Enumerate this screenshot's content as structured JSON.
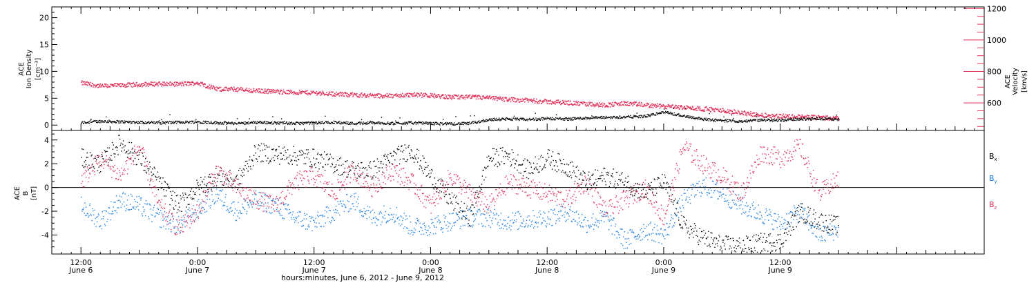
{
  "chart_data": [
    {
      "type": "scatter",
      "panel": "top",
      "colors": {
        "density": "#000000",
        "velocity": "#e0305a"
      },
      "left_axis": {
        "line1": "ACE",
        "line2": "Ion Density",
        "line3": "[cm⁻³]",
        "ylim": [
          -1,
          22
        ],
        "ticks": [
          0,
          5,
          10,
          15,
          20
        ],
        "tick_labels": [
          "0",
          "5",
          "10",
          "15",
          "20"
        ]
      },
      "right_axis": {
        "line1": "ACE",
        "line2": "Velocity",
        "line3": "[km/s]",
        "ylim": [
          425,
          1210
        ],
        "ticks": [
          600,
          800,
          1000,
          1200
        ],
        "tick_labels": [
          "600",
          "800",
          "1000",
          "1200"
        ]
      },
      "density_series": {
        "x_hours": [
          0,
          2,
          4,
          6,
          8,
          10,
          12,
          14,
          16,
          18,
          20,
          22,
          24,
          26,
          28,
          30,
          32,
          34,
          36,
          38,
          40,
          42,
          44,
          46,
          48,
          50,
          52,
          54,
          56,
          58,
          60,
          62,
          64,
          66,
          68,
          70,
          72,
          74,
          76,
          78
        ],
        "values": [
          0.5,
          0.8,
          0.7,
          0.6,
          0.5,
          0.6,
          0.7,
          0.5,
          0.4,
          0.6,
          0.5,
          0.4,
          0.5,
          0.6,
          0.4,
          0.5,
          0.4,
          0.5,
          0.4,
          0.3,
          0.4,
          1.1,
          1.2,
          1.1,
          1.3,
          1.2,
          1.4,
          1.5,
          1.6,
          1.7,
          2.5,
          1.8,
          1.2,
          0.9,
          0.8,
          1.0,
          1.0,
          1.2,
          1.3,
          1.1
        ]
      },
      "velocity_series": {
        "x_hours": [
          0,
          2,
          4,
          6,
          8,
          10,
          12,
          14,
          16,
          18,
          20,
          22,
          24,
          26,
          28,
          30,
          32,
          34,
          36,
          38,
          40,
          42,
          44,
          46,
          48,
          50,
          52,
          54,
          56,
          58,
          60,
          62,
          64,
          66,
          68,
          70,
          72,
          74,
          76,
          78
        ],
        "values": [
          730,
          710,
          715,
          720,
          725,
          722,
          730,
          690,
          690,
          680,
          675,
          670,
          668,
          660,
          655,
          650,
          648,
          655,
          650,
          640,
          640,
          635,
          625,
          620,
          610,
          605,
          595,
          590,
          600,
          590,
          580,
          575,
          565,
          555,
          540,
          525,
          520,
          515,
          510,
          505
        ]
      }
    },
    {
      "type": "scatter",
      "panel": "bottom",
      "axis": {
        "line1": "ACE",
        "line2": "B",
        "line3": "[nT]",
        "ylim": [
          -5.6,
          4.8
        ],
        "ticks": [
          -4,
          -2,
          0,
          2,
          4
        ],
        "tick_labels": [
          "-4",
          "-2",
          "0",
          "2",
          "4"
        ]
      },
      "zero_line": true,
      "series": [
        {
          "name": "Bx",
          "label_main": "B",
          "label_sub": "x",
          "color": "#000000",
          "x_hours": [
            0,
            2,
            4,
            6,
            8,
            10,
            12,
            14,
            16,
            18,
            20,
            22,
            24,
            26,
            28,
            30,
            32,
            34,
            36,
            38,
            40,
            42,
            44,
            46,
            48,
            50,
            52,
            54,
            56,
            58,
            60,
            62,
            64,
            66,
            68,
            70,
            72,
            74,
            76,
            78
          ],
          "values": [
            2.5,
            2.0,
            3.8,
            2.5,
            0.5,
            -1.5,
            0.0,
            1.0,
            0.5,
            3.0,
            2.8,
            2.7,
            2.5,
            2.0,
            1.5,
            1.5,
            2.5,
            3.2,
            1.0,
            -1.0,
            -2.5,
            2.5,
            2.7,
            1.5,
            2.5,
            1.8,
            0.5,
            1.0,
            0.5,
            -0.5,
            0.5,
            -3.2,
            -4.2,
            -4.8,
            -4.9,
            -4.6,
            -4.5,
            -2.0,
            -2.8,
            -3.2
          ]
        },
        {
          "name": "By",
          "label_main": "B",
          "label_sub": "y",
          "color": "#1f7fe0",
          "x_hours": [
            0,
            2,
            4,
            6,
            8,
            10,
            12,
            14,
            16,
            18,
            20,
            22,
            24,
            26,
            28,
            30,
            32,
            34,
            36,
            38,
            40,
            42,
            44,
            46,
            48,
            50,
            52,
            54,
            56,
            58,
            60,
            62,
            64,
            66,
            68,
            70,
            72,
            74,
            76,
            78
          ],
          "values": [
            -1.5,
            -2.8,
            -1.0,
            -1.5,
            -2.5,
            -3.2,
            -1.8,
            -0.5,
            -2.0,
            -1.0,
            -1.5,
            -2.5,
            -3.0,
            -2.0,
            -1.0,
            -2.5,
            -2.0,
            -3.3,
            -3.2,
            -2.8,
            -2.5,
            -2.5,
            -2.8,
            -2.7,
            -2.5,
            -2.0,
            -3.0,
            -2.5,
            -4.5,
            -3.5,
            -4.0,
            -1.0,
            0.2,
            -0.5,
            -1.5,
            -2.2,
            -3.0,
            -2.0,
            -4.0,
            -3.5
          ]
        },
        {
          "name": "Bz",
          "label_main": "B",
          "label_sub": "z",
          "color": "#e0305a",
          "x_hours": [
            0,
            2,
            4,
            6,
            8,
            10,
            12,
            14,
            16,
            18,
            20,
            22,
            24,
            26,
            28,
            30,
            32,
            34,
            36,
            38,
            40,
            42,
            44,
            46,
            48,
            50,
            52,
            54,
            56,
            58,
            60,
            62,
            64,
            66,
            68,
            70,
            72,
            74,
            76,
            78
          ],
          "values": [
            0.5,
            2.5,
            1.0,
            3.5,
            -1.5,
            -3.5,
            -2.0,
            1.5,
            0.0,
            -1.0,
            -1.5,
            0.5,
            1.0,
            -0.5,
            1.5,
            0.0,
            1.5,
            0.5,
            -1.5,
            1.0,
            -0.5,
            -1.5,
            0.5,
            0.0,
            -0.5,
            -1.0,
            0.5,
            -2.0,
            -1.0,
            0.0,
            -2.5,
            3.5,
            2.0,
            1.0,
            -0.5,
            3.0,
            2.5,
            3.5,
            -0.5,
            0.8
          ]
        }
      ]
    },
    {
      "type": "time_axis",
      "xlabel": "hours:minutes, June  6, 2012 - June  9, 2012",
      "xlim_hours": [
        -3,
        93
      ],
      "ticks": [
        {
          "hour": 0,
          "time": "12:00",
          "date": "June 6"
        },
        {
          "hour": 12,
          "time": "0:00",
          "date": "June 7"
        },
        {
          "hour": 24,
          "time": "12:00",
          "date": "June 7"
        },
        {
          "hour": 36,
          "time": "0:00",
          "date": "June 8"
        },
        {
          "hour": 48,
          "time": "12:00",
          "date": "June 8"
        },
        {
          "hour": 60,
          "time": "0:00",
          "date": "June 9"
        },
        {
          "hour": 72,
          "time": "12:00",
          "date": "June 9"
        }
      ],
      "data_end_hour": 78
    }
  ]
}
